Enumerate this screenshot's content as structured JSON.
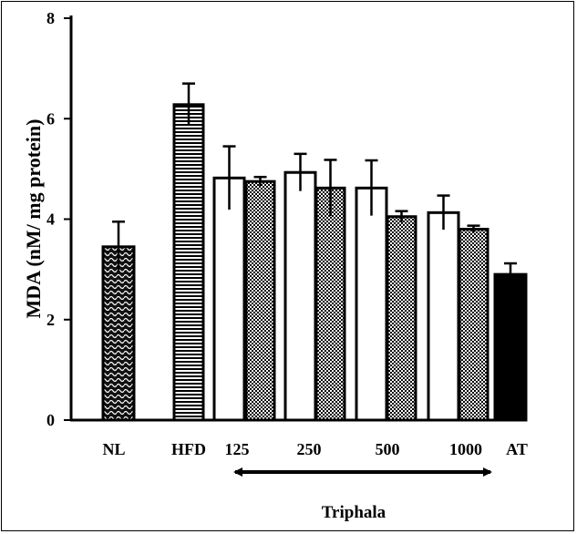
{
  "chart_data": {
    "type": "bar",
    "title": "",
    "xlabel": "Triphala",
    "ylabel": "MDA (nM/ mg protein)",
    "ylim": [
      0,
      8
    ],
    "yticks": [
      0,
      2,
      4,
      6,
      8
    ],
    "group_labels": [
      "NL",
      "HFD",
      "125",
      "250",
      "500",
      "1000",
      "AT"
    ],
    "bars": [
      {
        "group": "NL",
        "fill": "wave",
        "value": 3.45,
        "error": 0.5
      },
      {
        "group": "HFD",
        "fill": "hstripes",
        "value": 6.28,
        "error": 0.42
      },
      {
        "group": "125",
        "fill": "white",
        "value": 4.82,
        "error": 0.63
      },
      {
        "group": "125",
        "fill": "checker",
        "value": 4.75,
        "error": 0.09
      },
      {
        "group": "250",
        "fill": "white",
        "value": 4.93,
        "error": 0.37
      },
      {
        "group": "250",
        "fill": "checker",
        "value": 4.62,
        "error": 0.56
      },
      {
        "group": "500",
        "fill": "white",
        "value": 4.62,
        "error": 0.55
      },
      {
        "group": "500",
        "fill": "checker",
        "value": 4.05,
        "error": 0.11
      },
      {
        "group": "1000",
        "fill": "white",
        "value": 4.13,
        "error": 0.34
      },
      {
        "group": "1000",
        "fill": "checker",
        "value": 3.8,
        "error": 0.07
      },
      {
        "group": "AT",
        "fill": "black",
        "value": 2.9,
        "error": 0.22
      }
    ],
    "annotation": "Triphala"
  }
}
